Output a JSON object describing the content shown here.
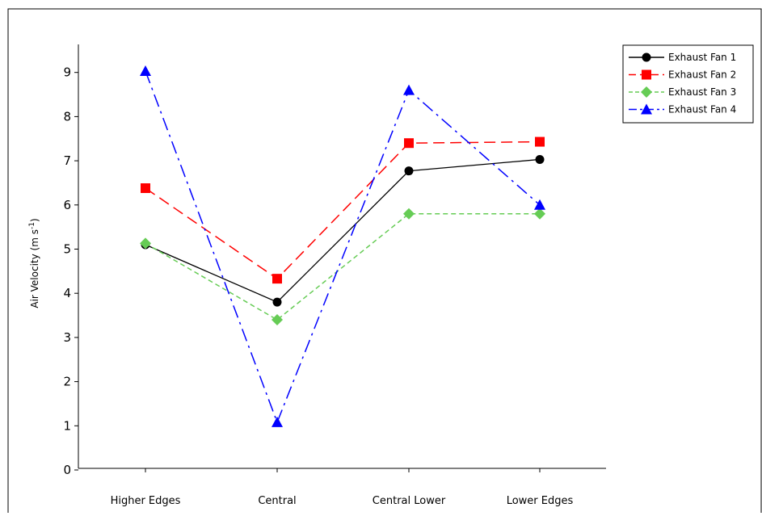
{
  "chart_data": {
    "type": "line",
    "title": "",
    "xlabel": "",
    "ylabel": "Air Velocity (m s",
    "ylabel_superscript": "-1",
    "ylabel_close": ")",
    "categories": [
      "Higher Edges",
      "Central",
      "Central Lower",
      "Lower Edges"
    ],
    "ylim": [
      0,
      9
    ],
    "yticks": [
      0,
      1,
      2,
      3,
      4,
      5,
      6,
      7,
      8,
      9
    ],
    "grid": false,
    "legend_position": "top-right",
    "series": [
      {
        "name": "Exhaust Fan 1",
        "values": [
          5.1,
          3.8,
          6.77,
          7.03
        ],
        "color": "#000000",
        "marker": "circle",
        "dash": "solid"
      },
      {
        "name": "Exhaust Fan 2",
        "values": [
          6.38,
          4.33,
          7.4,
          7.43
        ],
        "color": "#ff0000",
        "marker": "square",
        "dash": "long-dash"
      },
      {
        "name": "Exhaust Fan 3",
        "values": [
          5.13,
          3.4,
          5.8,
          5.8
        ],
        "color": "#66cc55",
        "marker": "diamond",
        "dash": "short-dash"
      },
      {
        "name": "Exhaust Fan 4",
        "values": [
          9.03,
          1.08,
          8.6,
          6.0
        ],
        "color": "#0000ff",
        "marker": "triangle",
        "dash": "dash-dot"
      }
    ]
  }
}
